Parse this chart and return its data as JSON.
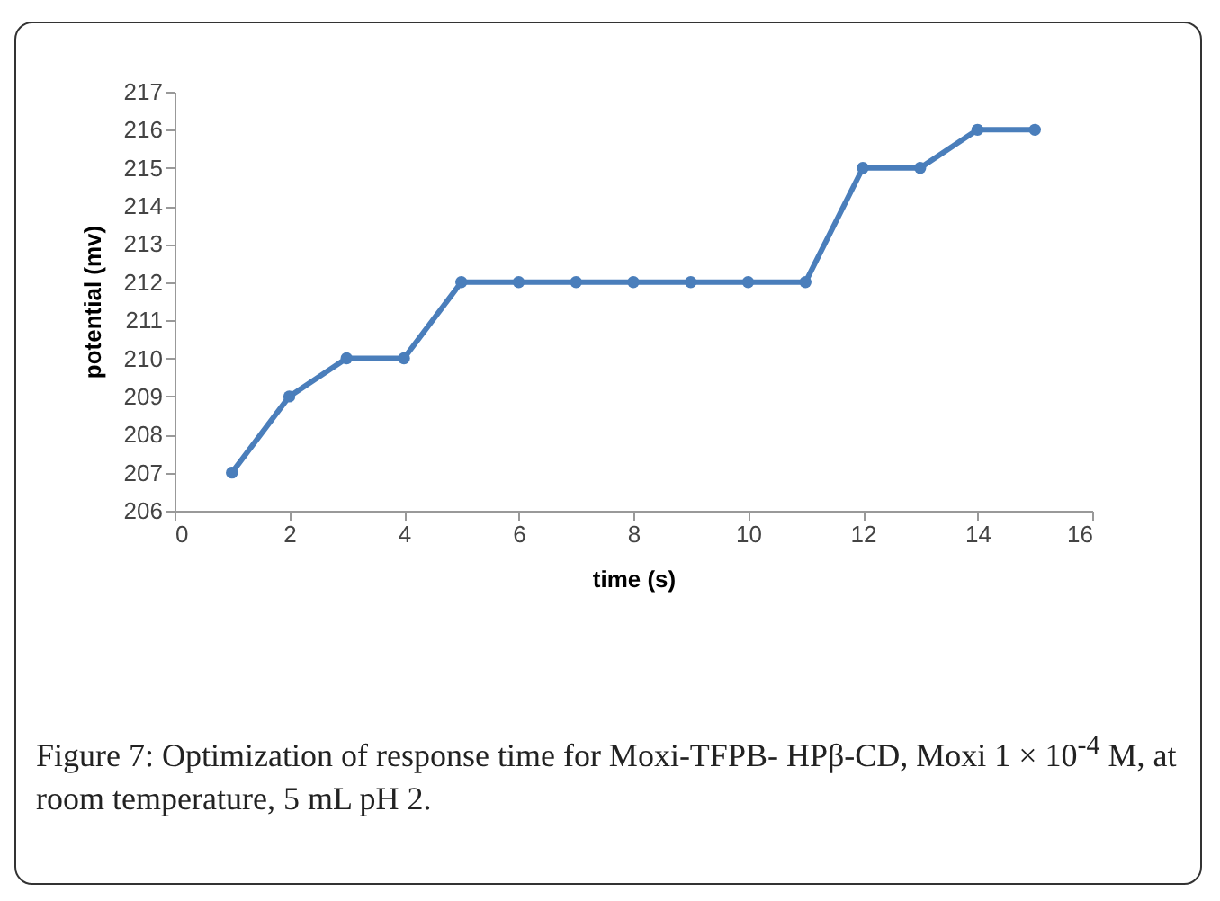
{
  "chart_data": {
    "type": "line",
    "xlabel": "time (s)",
    "ylabel": "potential (mv)",
    "x": [
      1,
      2,
      3,
      4,
      5,
      6,
      7,
      8,
      9,
      10,
      11,
      12,
      13,
      14,
      15
    ],
    "series": [
      {
        "color": "#4a7ebb",
        "values": [
          207,
          209,
          210,
          210,
          212,
          212,
          212,
          212,
          212,
          212,
          212,
          215,
          215,
          216,
          216
        ]
      }
    ],
    "xlim": [
      0,
      16
    ],
    "xticks": [
      0,
      2,
      4,
      6,
      8,
      10,
      12,
      14,
      16
    ],
    "ylim": [
      206,
      217
    ],
    "yticks": [
      206,
      207,
      208,
      209,
      210,
      211,
      212,
      213,
      214,
      215,
      216,
      217
    ],
    "grid": false,
    "marker": "circle",
    "line_style": "solid",
    "annotations": [
      "Figure 7: Optimization of response time for Moxi-TFPB- HPβ-CD, Moxi 1 × 10$^{-4}$ M, at room temperature, 5 mL pH 2."
    ]
  }
}
